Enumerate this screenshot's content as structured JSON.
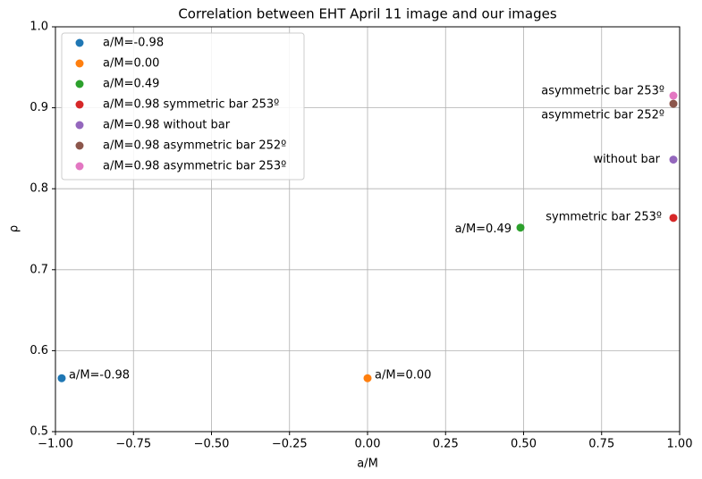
{
  "chart_data": {
    "type": "scatter",
    "title": "Correlation between EHT April 11 image and our images",
    "xlabel": "a/M",
    "ylabel": "ρ",
    "xlim": [
      -1,
      1
    ],
    "ylim": [
      0.5,
      1
    ],
    "xticks": [
      {
        "value": -1,
        "label": "−1.00"
      },
      {
        "value": -0.75,
        "label": "−0.75"
      },
      {
        "value": -0.5,
        "label": "−0.50"
      },
      {
        "value": -0.25,
        "label": "−0.25"
      },
      {
        "value": 0,
        "label": "0.00"
      },
      {
        "value": 0.25,
        "label": "0.25"
      },
      {
        "value": 0.5,
        "label": "0.50"
      },
      {
        "value": 0.75,
        "label": "0.75"
      },
      {
        "value": 1,
        "label": "1.00"
      }
    ],
    "yticks": [
      0.5,
      0.6,
      0.7,
      0.8,
      0.9,
      {
        "value": 1,
        "label": "1.0"
      }
    ],
    "grid": true,
    "legend": "upper left",
    "series": [
      {
        "name": "a/M=-0.98",
        "color": "#1f77b4",
        "x": [
          -0.98
        ],
        "values": [
          0.566
        ],
        "annotation": "a/M=-0.98"
      },
      {
        "name": "a/M=0.00",
        "color": "#ff7f0e",
        "x": [
          0
        ],
        "values": [
          0.566
        ],
        "annotation": "a/M=0.00"
      },
      {
        "name": "a/M=0.49",
        "color": "#2ca02c",
        "x": [
          0.49
        ],
        "values": [
          0.752
        ],
        "annotation": "a/M=0.49"
      },
      {
        "name": "a/M=0.98 symmetric bar 253º",
        "color": "#d62728",
        "x": [
          0.98
        ],
        "values": [
          0.764
        ],
        "annotation": "symmetric bar 253º"
      },
      {
        "name": "a/M=0.98 without bar",
        "color": "#9467bd",
        "x": [
          0.98
        ],
        "values": [
          0.836
        ],
        "annotation": "without bar"
      },
      {
        "name": "a/M=0.98 asymmetric bar 252º",
        "color": "#8c564b",
        "x": [
          0.98
        ],
        "values": [
          0.905
        ],
        "annotation": "asymmetric bar 252º"
      },
      {
        "name": "a/M=0.98 asymmetric bar 253º",
        "color": "#e377c2",
        "x": [
          0.98
        ],
        "values": [
          0.915
        ],
        "annotation": "asymmetric bar 253º"
      }
    ]
  }
}
